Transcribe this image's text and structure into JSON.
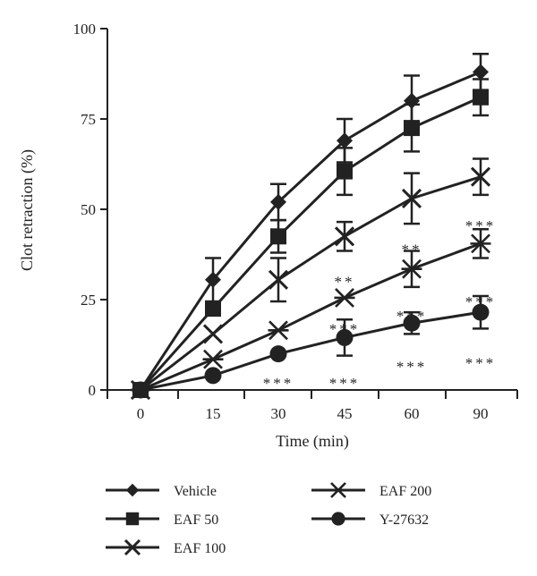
{
  "chart_data": {
    "type": "line",
    "xlabel": "Time (min)",
    "ylabel": "Clot retraction (%)",
    "categories": [
      "0",
      "15",
      "30",
      "45",
      "60",
      "90"
    ],
    "ylim": [
      0,
      100
    ],
    "yticks": [
      0,
      25,
      50,
      75,
      100
    ],
    "grid": false,
    "legend_position": "bottom",
    "series": [
      {
        "name": "Vehicle",
        "marker": "diamond",
        "values": [
          0,
          30.5,
          52,
          69,
          80,
          88
        ],
        "err": [
          0,
          6,
          5,
          6,
          7,
          5
        ]
      },
      {
        "name": "EAF 50",
        "marker": "square",
        "values": [
          0,
          22.5,
          42.5,
          60.5,
          72.5,
          81
        ],
        "err": [
          0,
          0,
          4.5,
          6.5,
          6.5,
          5
        ]
      },
      {
        "name": "EAF 100",
        "marker": "x",
        "values": [
          0,
          15.5,
          30.5,
          42.5,
          53,
          59
        ],
        "err": [
          0,
          0,
          6,
          4,
          7,
          5
        ]
      },
      {
        "name": "EAF 200",
        "marker": "asterisk",
        "values": [
          0,
          8.5,
          16.5,
          25.5,
          33.5,
          40.5
        ],
        "err": [
          0,
          0,
          0,
          0,
          5,
          4
        ]
      },
      {
        "name": "Y-27632",
        "marker": "circle",
        "values": [
          0,
          4,
          10,
          14.5,
          18.5,
          21.5
        ],
        "err": [
          0,
          0,
          0,
          5,
          3,
          4.5
        ]
      }
    ],
    "annotations": [
      {
        "x": "30",
        "y": 3.5,
        "text": "***"
      },
      {
        "x": "45",
        "y": 31.5,
        "text": "**"
      },
      {
        "x": "45",
        "y": 18.5,
        "text": "***"
      },
      {
        "x": "45",
        "y": 3.5,
        "text": "***"
      },
      {
        "x": "60",
        "y": 40.5,
        "text": "**"
      },
      {
        "x": "60",
        "y": 22,
        "text": "***"
      },
      {
        "x": "60",
        "y": 8,
        "text": "***"
      },
      {
        "x": "90",
        "y": 47,
        "text": "***"
      },
      {
        "x": "90",
        "y": 26,
        "text": "***"
      },
      {
        "x": "90",
        "y": 9,
        "text": "***"
      }
    ]
  }
}
